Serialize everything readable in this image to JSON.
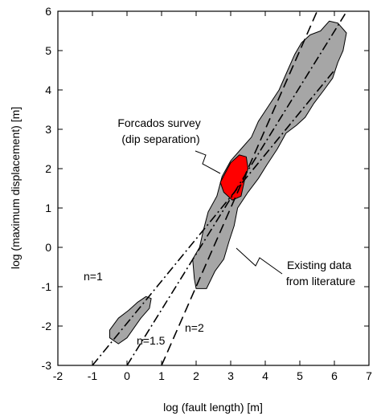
{
  "chart_data": {
    "type": "scatter",
    "xlabel": "log (fault length) [m]",
    "ylabel": "log (maximum displacement) [m]",
    "xlim": [
      -2,
      7
    ],
    "ylim": [
      -3,
      6
    ],
    "xticks": [
      -2,
      -1,
      0,
      1,
      2,
      3,
      4,
      5,
      6,
      7
    ],
    "yticks": [
      -3,
      -2,
      -1,
      0,
      1,
      2,
      3,
      4,
      5,
      6
    ],
    "grid": false,
    "colors": {
      "literature_fill": "#a6a6a6",
      "forcados_fill": "#ff0000",
      "outline": "#000000"
    },
    "series": [
      {
        "name": "Existing data from literature",
        "kind": "region",
        "polygons": [
          [
            [
              1.95,
              -0.8
            ],
            [
              1.9,
              -0.3
            ],
            [
              2.1,
              0.0
            ],
            [
              2.2,
              0.4
            ],
            [
              2.35,
              0.9
            ],
            [
              2.6,
              1.3
            ],
            [
              2.75,
              1.8
            ],
            [
              3.0,
              2.2
            ],
            [
              3.3,
              2.5
            ],
            [
              3.6,
              2.8
            ],
            [
              3.8,
              3.2
            ],
            [
              4.1,
              3.6
            ],
            [
              4.4,
              4.0
            ],
            [
              4.65,
              4.5
            ],
            [
              4.85,
              4.9
            ],
            [
              5.05,
              5.2
            ],
            [
              5.3,
              5.4
            ],
            [
              5.6,
              5.5
            ],
            [
              5.85,
              5.75
            ],
            [
              6.1,
              5.7
            ],
            [
              6.35,
              5.45
            ],
            [
              6.25,
              5.0
            ],
            [
              6.1,
              4.7
            ],
            [
              5.95,
              4.3
            ],
            [
              5.7,
              4.0
            ],
            [
              5.4,
              3.65
            ],
            [
              5.15,
              3.3
            ],
            [
              4.9,
              3.1
            ],
            [
              4.6,
              2.9
            ],
            [
              4.35,
              2.5
            ],
            [
              4.05,
              2.1
            ],
            [
              3.8,
              1.75
            ],
            [
              3.5,
              1.4
            ],
            [
              3.2,
              1.0
            ],
            [
              3.1,
              0.55
            ],
            [
              2.95,
              0.15
            ],
            [
              2.8,
              -0.3
            ],
            [
              2.55,
              -0.6
            ],
            [
              2.3,
              -1.05
            ],
            [
              2.0,
              -1.05
            ]
          ],
          [
            [
              -0.5,
              -2.1
            ],
            [
              -0.25,
              -1.8
            ],
            [
              0.05,
              -1.6
            ],
            [
              0.3,
              -1.4
            ],
            [
              0.55,
              -1.25
            ],
            [
              0.7,
              -1.3
            ],
            [
              0.65,
              -1.55
            ],
            [
              0.4,
              -1.8
            ],
            [
              0.2,
              -2.05
            ],
            [
              0.0,
              -2.3
            ],
            [
              -0.25,
              -2.45
            ],
            [
              -0.5,
              -2.3
            ]
          ]
        ]
      },
      {
        "name": "Forcados survey (dip separation)",
        "kind": "region",
        "polygons": [
          [
            [
              2.85,
              1.9
            ],
            [
              3.0,
              2.15
            ],
            [
              3.25,
              2.35
            ],
            [
              3.45,
              2.3
            ],
            [
              3.5,
              2.0
            ],
            [
              3.4,
              1.7
            ],
            [
              3.3,
              1.3
            ],
            [
              3.05,
              1.2
            ],
            [
              2.8,
              1.4
            ],
            [
              2.7,
              1.65
            ]
          ]
        ]
      },
      {
        "name": "n=1",
        "kind": "reference-line",
        "dash": "dash-dot",
        "points": [
          [
            -1.0,
            -3.0
          ],
          [
            6.0,
            4.5
          ]
        ]
      },
      {
        "name": "n=1.5",
        "kind": "reference-line",
        "dash": "dash-dot",
        "points": [
          [
            0.0,
            -3.0
          ],
          [
            6.5,
            6.2
          ]
        ]
      },
      {
        "name": "n=2",
        "kind": "reference-line",
        "dash": "dash",
        "points": [
          [
            1.0,
            -3.0
          ],
          [
            5.5,
            6.0
          ]
        ]
      }
    ],
    "annotations": [
      {
        "text_lines": [
          "Forcados survey",
          "(dip separation)"
        ],
        "target": "Forcados survey (dip separation)"
      },
      {
        "text_lines": [
          "Existing data",
          "from literature"
        ],
        "target": "Existing data from literature"
      },
      {
        "text_lines": [
          "n=1"
        ],
        "target": "n=1"
      },
      {
        "text_lines": [
          "n=1.5"
        ],
        "target": "n=1.5"
      },
      {
        "text_lines": [
          "n=2"
        ],
        "target": "n=2"
      }
    ]
  }
}
